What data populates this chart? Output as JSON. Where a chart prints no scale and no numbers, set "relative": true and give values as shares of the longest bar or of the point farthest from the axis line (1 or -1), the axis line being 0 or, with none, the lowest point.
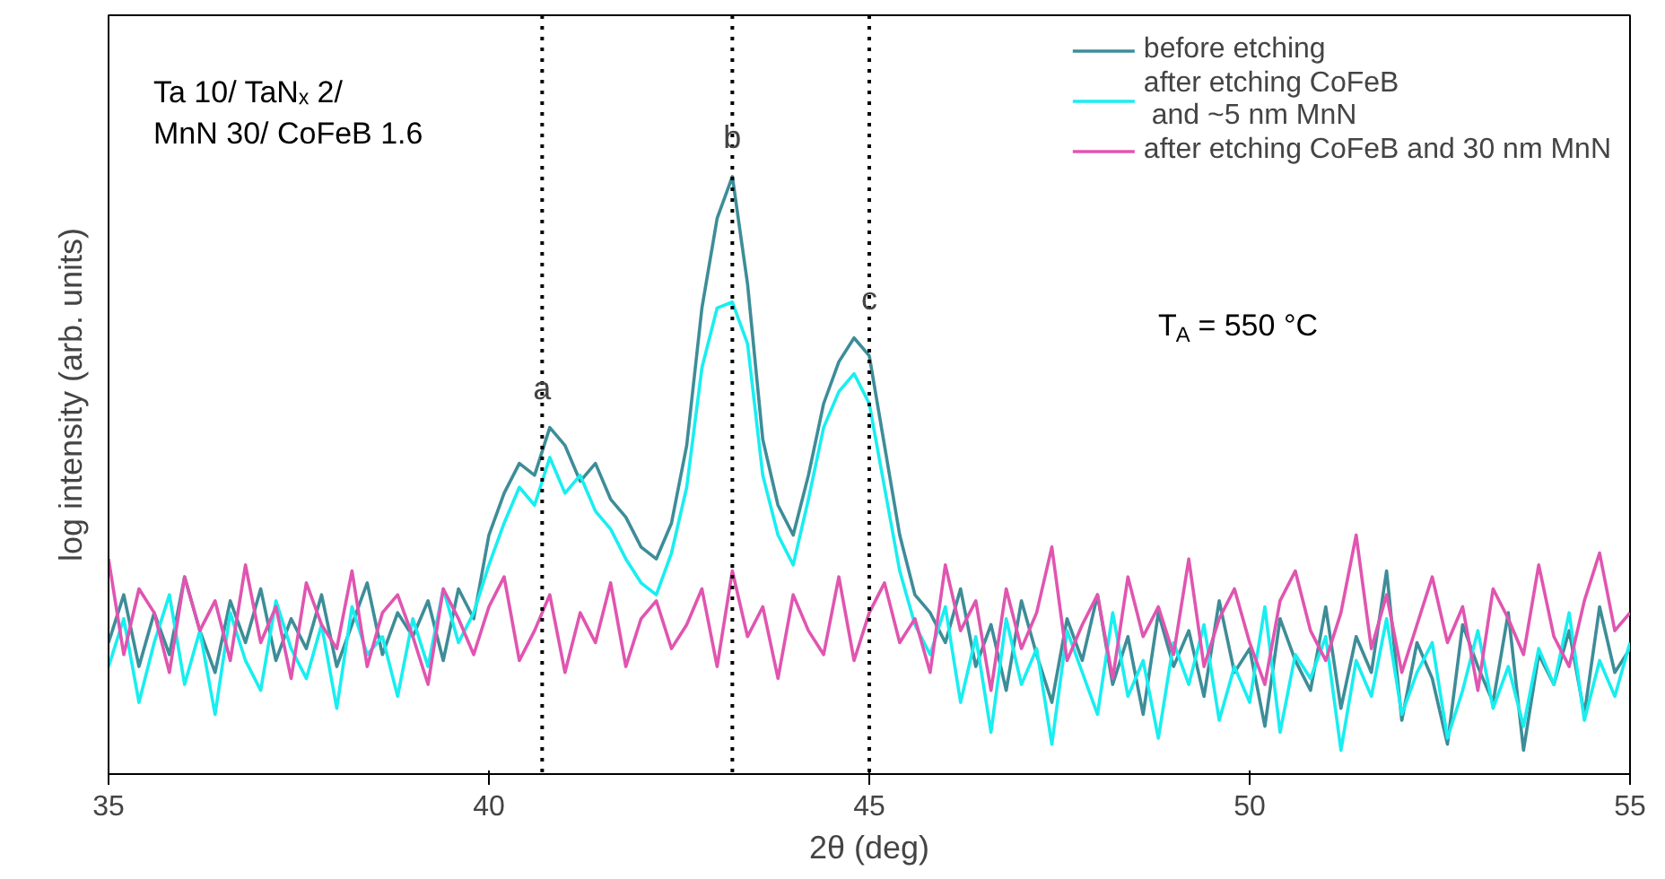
{
  "chart_data": {
    "type": "line",
    "relative": true,
    "xlabel": "2θ (deg)",
    "ylabel": "log intensity (arb. units)",
    "xlim": [
      35,
      55
    ],
    "xticks": [
      35,
      40,
      45,
      50,
      55
    ],
    "grid": false,
    "legend": "top right",
    "x": [
      35.0,
      35.2,
      35.4,
      35.6,
      35.8,
      36.0,
      36.2,
      36.4,
      36.6,
      36.8,
      37.0,
      37.2,
      37.4,
      37.6,
      37.8,
      38.0,
      38.2,
      38.4,
      38.6,
      38.8,
      39.0,
      39.2,
      39.4,
      39.6,
      39.8,
      40.0,
      40.2,
      40.4,
      40.6,
      40.8,
      41.0,
      41.2,
      41.4,
      41.6,
      41.8,
      42.0,
      42.2,
      42.4,
      42.6,
      42.8,
      43.0,
      43.2,
      43.4,
      43.6,
      43.8,
      44.0,
      44.2,
      44.4,
      44.6,
      44.8,
      45.0,
      45.2,
      45.4,
      45.6,
      45.8,
      46.0,
      46.2,
      46.4,
      46.6,
      46.8,
      47.0,
      47.2,
      47.4,
      47.6,
      47.8,
      48.0,
      48.2,
      48.4,
      48.6,
      48.8,
      49.0,
      49.2,
      49.4,
      49.6,
      49.8,
      50.0,
      50.2,
      50.4,
      50.6,
      50.8,
      51.0,
      51.2,
      51.4,
      51.6,
      51.8,
      52.0,
      52.2,
      52.4,
      52.6,
      52.8,
      53.0,
      53.2,
      53.4,
      53.6,
      53.8,
      54.0,
      54.2,
      54.4,
      54.6,
      54.8,
      55.0
    ],
    "series": [
      {
        "name": "before etching",
        "color": "#3d8d98",
        "values": [
          0.22,
          0.3,
          0.18,
          0.27,
          0.2,
          0.33,
          0.24,
          0.17,
          0.29,
          0.22,
          0.31,
          0.19,
          0.26,
          0.21,
          0.3,
          0.18,
          0.25,
          0.32,
          0.2,
          0.27,
          0.23,
          0.29,
          0.19,
          0.31,
          0.26,
          0.4,
          0.47,
          0.52,
          0.5,
          0.58,
          0.55,
          0.49,
          0.52,
          0.46,
          0.43,
          0.38,
          0.36,
          0.42,
          0.55,
          0.78,
          0.93,
          1.0,
          0.82,
          0.56,
          0.45,
          0.4,
          0.5,
          0.62,
          0.69,
          0.73,
          0.7,
          0.55,
          0.4,
          0.3,
          0.27,
          0.22,
          0.31,
          0.18,
          0.25,
          0.14,
          0.29,
          0.2,
          0.12,
          0.26,
          0.19,
          0.3,
          0.15,
          0.23,
          0.1,
          0.27,
          0.18,
          0.24,
          0.13,
          0.29,
          0.17,
          0.21,
          0.08,
          0.26,
          0.19,
          0.14,
          0.28,
          0.11,
          0.23,
          0.17,
          0.34,
          0.09,
          0.22,
          0.16,
          0.05,
          0.25,
          0.18,
          0.12,
          0.27,
          0.04,
          0.2,
          0.15,
          0.24,
          0.1,
          0.28,
          0.17,
          0.21
        ]
      },
      {
        "name": "after etching CoFeB\n and ~5 nm MnN",
        "color": "#19eef0",
        "values": [
          0.18,
          0.26,
          0.12,
          0.22,
          0.3,
          0.15,
          0.24,
          0.1,
          0.27,
          0.19,
          0.14,
          0.29,
          0.21,
          0.16,
          0.25,
          0.11,
          0.28,
          0.2,
          0.23,
          0.13,
          0.26,
          0.18,
          0.31,
          0.22,
          0.27,
          0.35,
          0.42,
          0.48,
          0.45,
          0.53,
          0.47,
          0.5,
          0.44,
          0.41,
          0.36,
          0.32,
          0.3,
          0.37,
          0.48,
          0.68,
          0.78,
          0.79,
          0.72,
          0.5,
          0.4,
          0.35,
          0.46,
          0.58,
          0.64,
          0.67,
          0.62,
          0.48,
          0.34,
          0.25,
          0.2,
          0.28,
          0.12,
          0.23,
          0.07,
          0.26,
          0.15,
          0.21,
          0.05,
          0.24,
          0.17,
          0.1,
          0.27,
          0.13,
          0.19,
          0.06,
          0.22,
          0.15,
          0.25,
          0.09,
          0.18,
          0.12,
          0.28,
          0.07,
          0.2,
          0.16,
          0.23,
          0.04,
          0.19,
          0.13,
          0.26,
          0.1,
          0.17,
          0.22,
          0.06,
          0.14,
          0.24,
          0.11,
          0.18,
          0.08,
          0.21,
          0.15,
          0.27,
          0.09,
          0.19,
          0.13,
          0.22
        ]
      },
      {
        "name": "after etching CoFeB and 30 nm MnN",
        "color": "#e055b0",
        "values": [
          0.36,
          0.2,
          0.31,
          0.27,
          0.17,
          0.33,
          0.24,
          0.29,
          0.19,
          0.35,
          0.22,
          0.28,
          0.16,
          0.32,
          0.25,
          0.21,
          0.34,
          0.18,
          0.27,
          0.3,
          0.23,
          0.15,
          0.31,
          0.26,
          0.2,
          0.28,
          0.33,
          0.19,
          0.24,
          0.3,
          0.17,
          0.27,
          0.22,
          0.32,
          0.18,
          0.26,
          0.29,
          0.21,
          0.25,
          0.31,
          0.18,
          0.34,
          0.23,
          0.28,
          0.16,
          0.3,
          0.24,
          0.2,
          0.33,
          0.19,
          0.27,
          0.32,
          0.22,
          0.26,
          0.17,
          0.35,
          0.24,
          0.29,
          0.14,
          0.31,
          0.21,
          0.27,
          0.38,
          0.19,
          0.25,
          0.3,
          0.16,
          0.33,
          0.23,
          0.28,
          0.2,
          0.36,
          0.18,
          0.26,
          0.31,
          0.22,
          0.15,
          0.29,
          0.34,
          0.24,
          0.19,
          0.27,
          0.4,
          0.21,
          0.3,
          0.17,
          0.25,
          0.33,
          0.22,
          0.28,
          0.14,
          0.31,
          0.26,
          0.2,
          0.35,
          0.23,
          0.18,
          0.29,
          0.37,
          0.24,
          0.27
        ]
      }
    ],
    "ref_lines": [
      {
        "axis": "x",
        "value": 40.7,
        "label": "a",
        "color": "#000000",
        "line_style": "dotted"
      },
      {
        "axis": "x",
        "value": 43.2,
        "label": "b",
        "color": "#000000",
        "line_style": "dotted"
      },
      {
        "axis": "x",
        "value": 45.0,
        "label": "c",
        "color": "#000000",
        "line_style": "dotted"
      }
    ],
    "annotations": [
      "Ta 10/ TaNₓ 2/\nMnN 30/ CoFeB 1.6",
      "T$_{A}$ = 550 °C"
    ]
  }
}
